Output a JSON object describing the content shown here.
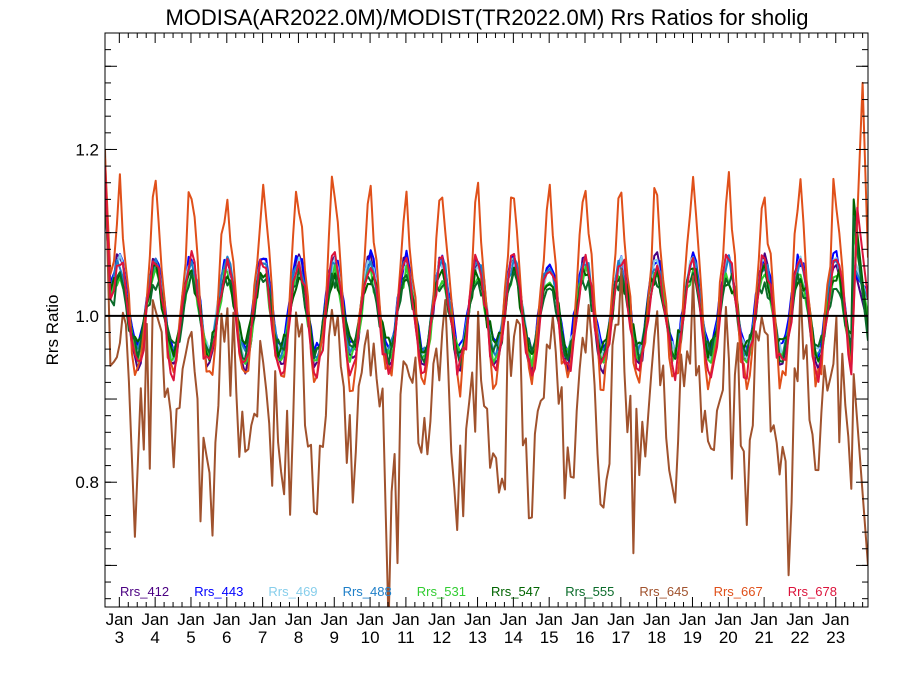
{
  "chart_data": {
    "type": "line",
    "title": "MODISA(AR2022.0M)/MODIST(TR2022.0M)  Rrs Ratios for sholig",
    "ylabel": "Rrs Ratio",
    "xlabel": "",
    "ylim": [
      0.65,
      1.34
    ],
    "xlim": [
      2.6,
      23.9
    ],
    "yticks": [
      {
        "value": 0.8,
        "label": "0.8"
      },
      {
        "value": 1.0,
        "label": "1.0"
      },
      {
        "value": 1.2,
        "label": "1.2"
      }
    ],
    "xticks": [
      {
        "value": 3,
        "line1": "Jan",
        "line2": "3"
      },
      {
        "value": 4,
        "line1": "Jan",
        "line2": "4"
      },
      {
        "value": 5,
        "line1": "Jan",
        "line2": "5"
      },
      {
        "value": 6,
        "line1": "Jan",
        "line2": "6"
      },
      {
        "value": 7,
        "line1": "Jan",
        "line2": "7"
      },
      {
        "value": 8,
        "line1": "Jan",
        "line2": "8"
      },
      {
        "value": 9,
        "line1": "Jan",
        "line2": "9"
      },
      {
        "value": 10,
        "line1": "Jan",
        "line2": "10"
      },
      {
        "value": 11,
        "line1": "Jan",
        "line2": "11"
      },
      {
        "value": 12,
        "line1": "Jan",
        "line2": "12"
      },
      {
        "value": 13,
        "line1": "Jan",
        "line2": "13"
      },
      {
        "value": 14,
        "line1": "Jan",
        "line2": "14"
      },
      {
        "value": 15,
        "line1": "Jan",
        "line2": "15"
      },
      {
        "value": 16,
        "line1": "Jan",
        "line2": "16"
      },
      {
        "value": 17,
        "line1": "Jan",
        "line2": "17"
      },
      {
        "value": 18,
        "line1": "Jan",
        "line2": "18"
      },
      {
        "value": 19,
        "line1": "Jan",
        "line2": "19"
      },
      {
        "value": 20,
        "line1": "Jan",
        "line2": "20"
      },
      {
        "value": 21,
        "line1": "Jan",
        "line2": "21"
      },
      {
        "value": 22,
        "line1": "Jan",
        "line2": "22"
      },
      {
        "value": 23,
        "line1": "Jan",
        "line2": "23"
      }
    ],
    "reference_line": 1.0,
    "legend_position": "bottom",
    "grid": false,
    "series": [
      {
        "name": "Rrs_412",
        "color": "#4b0082",
        "amplitude": 0.065,
        "mean": 1.005,
        "noise": 0.01,
        "tail": [
          {
            "x": 2.6,
            "y": 1.14
          },
          {
            "x": 2.75,
            "y": 1.03
          },
          {
            "x": 23.5,
            "y": 1.06
          },
          {
            "x": 23.9,
            "y": 0.99
          }
        ]
      },
      {
        "name": "Rrs_443",
        "color": "#0000ff",
        "amplitude": 0.055,
        "mean": 1.015,
        "noise": 0.01,
        "tail": [
          {
            "x": 2.6,
            "y": 1.16
          },
          {
            "x": 2.75,
            "y": 1.04
          },
          {
            "x": 23.5,
            "y": 1.05
          },
          {
            "x": 23.9,
            "y": 1.03
          }
        ]
      },
      {
        "name": "Rrs_469",
        "color": "#87ceeb",
        "amplitude": 0.055,
        "mean": 1.01,
        "noise": 0.01,
        "tail": [
          {
            "x": 2.6,
            "y": 1.15
          },
          {
            "x": 2.75,
            "y": 1.03
          },
          {
            "x": 23.5,
            "y": 1.07
          },
          {
            "x": 23.9,
            "y": 1.02
          }
        ]
      },
      {
        "name": "Rrs_488",
        "color": "#1e7fc8",
        "amplitude": 0.055,
        "mean": 1.01,
        "noise": 0.01,
        "tail": [
          {
            "x": 2.6,
            "y": 1.15
          },
          {
            "x": 2.75,
            "y": 1.03
          },
          {
            "x": 23.5,
            "y": 1.06
          },
          {
            "x": 23.9,
            "y": 1.02
          }
        ]
      },
      {
        "name": "Rrs_531",
        "color": "#32cd32",
        "amplitude": 0.05,
        "mean": 1.0,
        "noise": 0.012,
        "tail": [
          {
            "x": 2.6,
            "y": 1.15
          },
          {
            "x": 2.75,
            "y": 1.02
          },
          {
            "x": 23.5,
            "y": 1.1
          },
          {
            "x": 23.9,
            "y": 1.0
          }
        ]
      },
      {
        "name": "Rrs_547",
        "color": "#006400",
        "amplitude": 0.045,
        "mean": 1.005,
        "noise": 0.015,
        "tail": [
          {
            "x": 2.6,
            "y": 1.15
          },
          {
            "x": 2.75,
            "y": 1.03
          },
          {
            "x": 23.5,
            "y": 1.14
          },
          {
            "x": 23.9,
            "y": 0.98
          }
        ]
      },
      {
        "name": "Rrs_555",
        "color": "#0a6b2a",
        "amplitude": 0.045,
        "mean": 1.0,
        "noise": 0.015,
        "tail": [
          {
            "x": 2.6,
            "y": 1.15
          },
          {
            "x": 2.75,
            "y": 1.02
          },
          {
            "x": 23.5,
            "y": 1.12
          },
          {
            "x": 23.9,
            "y": 0.97
          }
        ]
      },
      {
        "name": "Rrs_645",
        "color": "#a0522d",
        "amplitude": 0.08,
        "mean": 0.9,
        "noise": 0.05,
        "tail": [
          {
            "x": 2.6,
            "y": 1.2
          },
          {
            "x": 2.75,
            "y": 0.94
          },
          {
            "x": 23.5,
            "y": 0.93
          },
          {
            "x": 23.9,
            "y": 0.7
          }
        ]
      },
      {
        "name": "Rrs_667",
        "color": "#e0501a",
        "amplitude": 0.1,
        "mean": 1.02,
        "noise": 0.02,
        "tail": [
          {
            "x": 2.6,
            "y": 1.19
          },
          {
            "x": 2.75,
            "y": 1.05
          },
          {
            "x": 23.75,
            "y": 1.28
          },
          {
            "x": 23.9,
            "y": 1.07
          }
        ]
      },
      {
        "name": "Rrs_678",
        "color": "#dc143c",
        "amplitude": 0.065,
        "mean": 1.0,
        "noise": 0.015,
        "tail": [
          {
            "x": 2.6,
            "y": 1.18
          },
          {
            "x": 2.75,
            "y": 1.02
          },
          {
            "x": 23.6,
            "y": 1.13
          },
          {
            "x": 23.9,
            "y": 1.02
          }
        ]
      }
    ]
  }
}
